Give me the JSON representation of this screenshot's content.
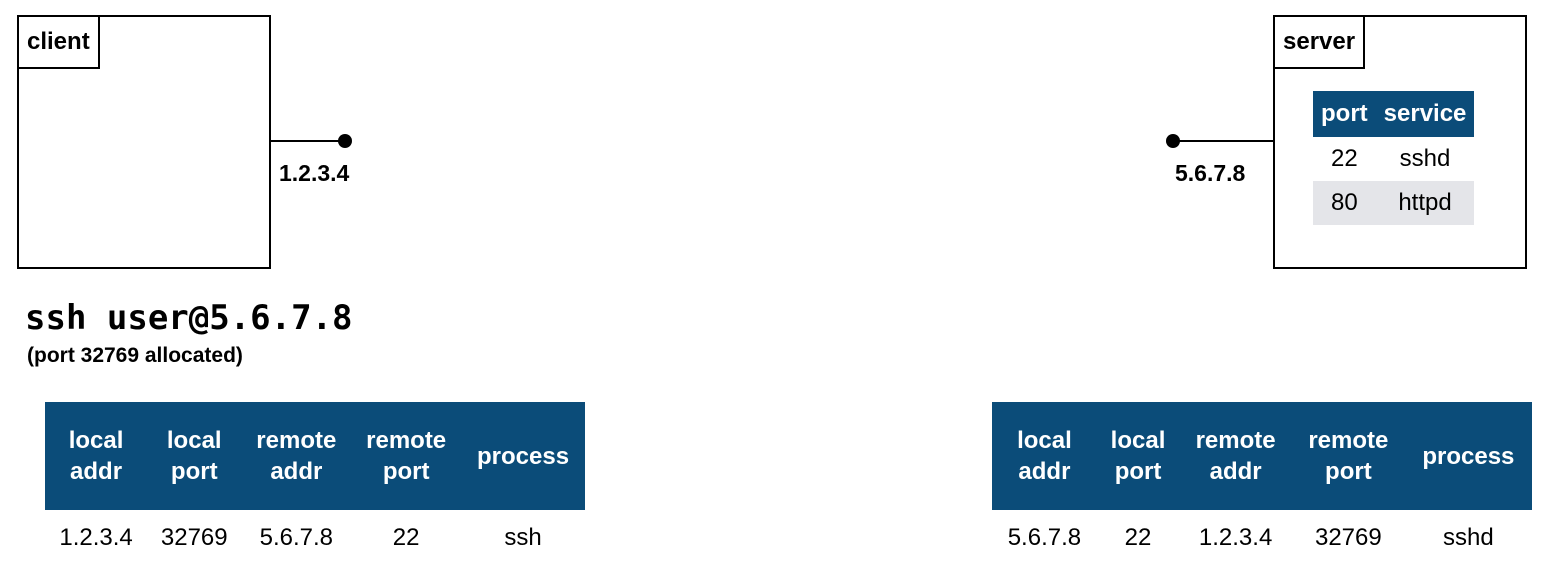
{
  "client": {
    "label": "client",
    "ip": "1.2.3.4"
  },
  "server": {
    "label": "server",
    "ip": "5.6.7.8",
    "services": {
      "headers": [
        "port",
        "service"
      ],
      "rows": [
        [
          "22",
          "sshd"
        ],
        [
          "80",
          "httpd"
        ]
      ]
    }
  },
  "command": {
    "text": "ssh user@5.6.7.8",
    "note": "(port 32769 allocated)"
  },
  "connection_tables": {
    "headers": [
      "local addr",
      "local port",
      "remote addr",
      "remote port",
      "process"
    ],
    "client": [
      "1.2.3.4",
      "32769",
      "5.6.7.8",
      "22",
      "ssh"
    ],
    "server": [
      "5.6.7.8",
      "22",
      "1.2.3.4",
      "32769",
      "sshd"
    ]
  }
}
